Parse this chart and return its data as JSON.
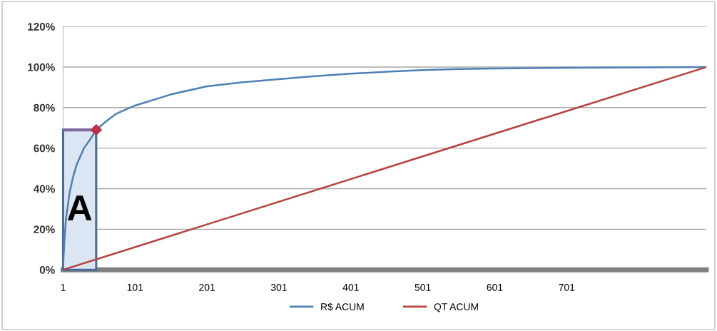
{
  "chart_data": {
    "type": "line",
    "xlim": [
      1,
      895
    ],
    "xticks": [
      1,
      101,
      201,
      301,
      401,
      501,
      601,
      701
    ],
    "ylim": [
      0,
      120
    ],
    "yticks": [
      {
        "value": 0,
        "label": "0%"
      },
      {
        "value": 20,
        "label": "20%"
      },
      {
        "value": 40,
        "label": "40%"
      },
      {
        "value": 60,
        "label": "60%"
      },
      {
        "value": 80,
        "label": "80%"
      },
      {
        "value": 100,
        "label": "100%"
      },
      {
        "value": 120,
        "label": "120%"
      }
    ],
    "grid": "y",
    "legend": "bottom",
    "series": [
      {
        "name": "R$ ACUM",
        "color": "#4f7fb4",
        "x": [
          1,
          3,
          5,
          10,
          15,
          20,
          30,
          40,
          47,
          60,
          75,
          101,
          151,
          201,
          251,
          301,
          351,
          401,
          451,
          501,
          551,
          601,
          651,
          701,
          801,
          895
        ],
        "values": [
          2,
          15,
          25,
          38,
          46,
          52,
          60,
          65,
          69,
          73,
          77,
          81,
          86.5,
          90.5,
          92.5,
          94,
          95.5,
          96.7,
          97.7,
          98.5,
          99,
          99.3,
          99.5,
          99.6,
          99.8,
          100
        ]
      },
      {
        "name": "QT ACUM",
        "color": "#b5433e",
        "x": [
          1,
          895
        ],
        "values": [
          0,
          100
        ]
      },
      {
        "type": "scatter",
        "color": "#c0304d",
        "marker": "diamond",
        "x": [
          47
        ],
        "values": [
          69
        ]
      }
    ],
    "bands": [
      {
        "axis": "x",
        "from": 1,
        "to": 47,
        "label": "A",
        "color": "#dce6f2"
      }
    ]
  }
}
